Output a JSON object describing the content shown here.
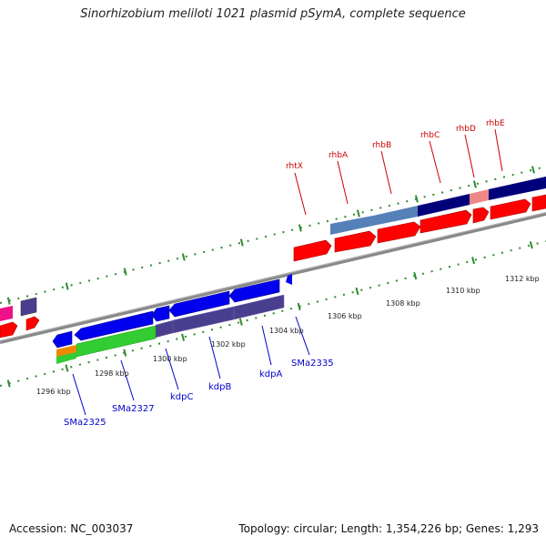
{
  "title": "Sinorhizobium meliloti 1021 plasmid pSymA, complete sequence",
  "footer": {
    "accession": "Accession: NC_003037",
    "topology": "Topology: circular; Length: 1,354,226 bp; Genes: 1,293"
  },
  "ticks": [
    "1296 kbp",
    "1298 kbp",
    "1300 kbp",
    "1302 kbp",
    "1304 kbp",
    "1306 kbp",
    "1308 kbp",
    "1310 kbp",
    "1312 kbp"
  ],
  "top_labels": [
    "rhtX",
    "rhbA",
    "rhbB",
    "rhbC",
    "rhbD",
    "rhbE"
  ],
  "bottom_labels": [
    "SMa2325",
    "SMa2327",
    "kdpC",
    "kdpB",
    "kdpA",
    "SMa2335"
  ],
  "colors": {
    "red": "#ff0000",
    "blue": "#0000ee",
    "navy": "#00007a",
    "slate": "#4a3f8f",
    "steel": "#5580b8",
    "pink": "#ee8888",
    "green": "#33cc33",
    "orange": "#ee8800",
    "backbone": "#808080",
    "tick_green": "#2e8b2e"
  }
}
